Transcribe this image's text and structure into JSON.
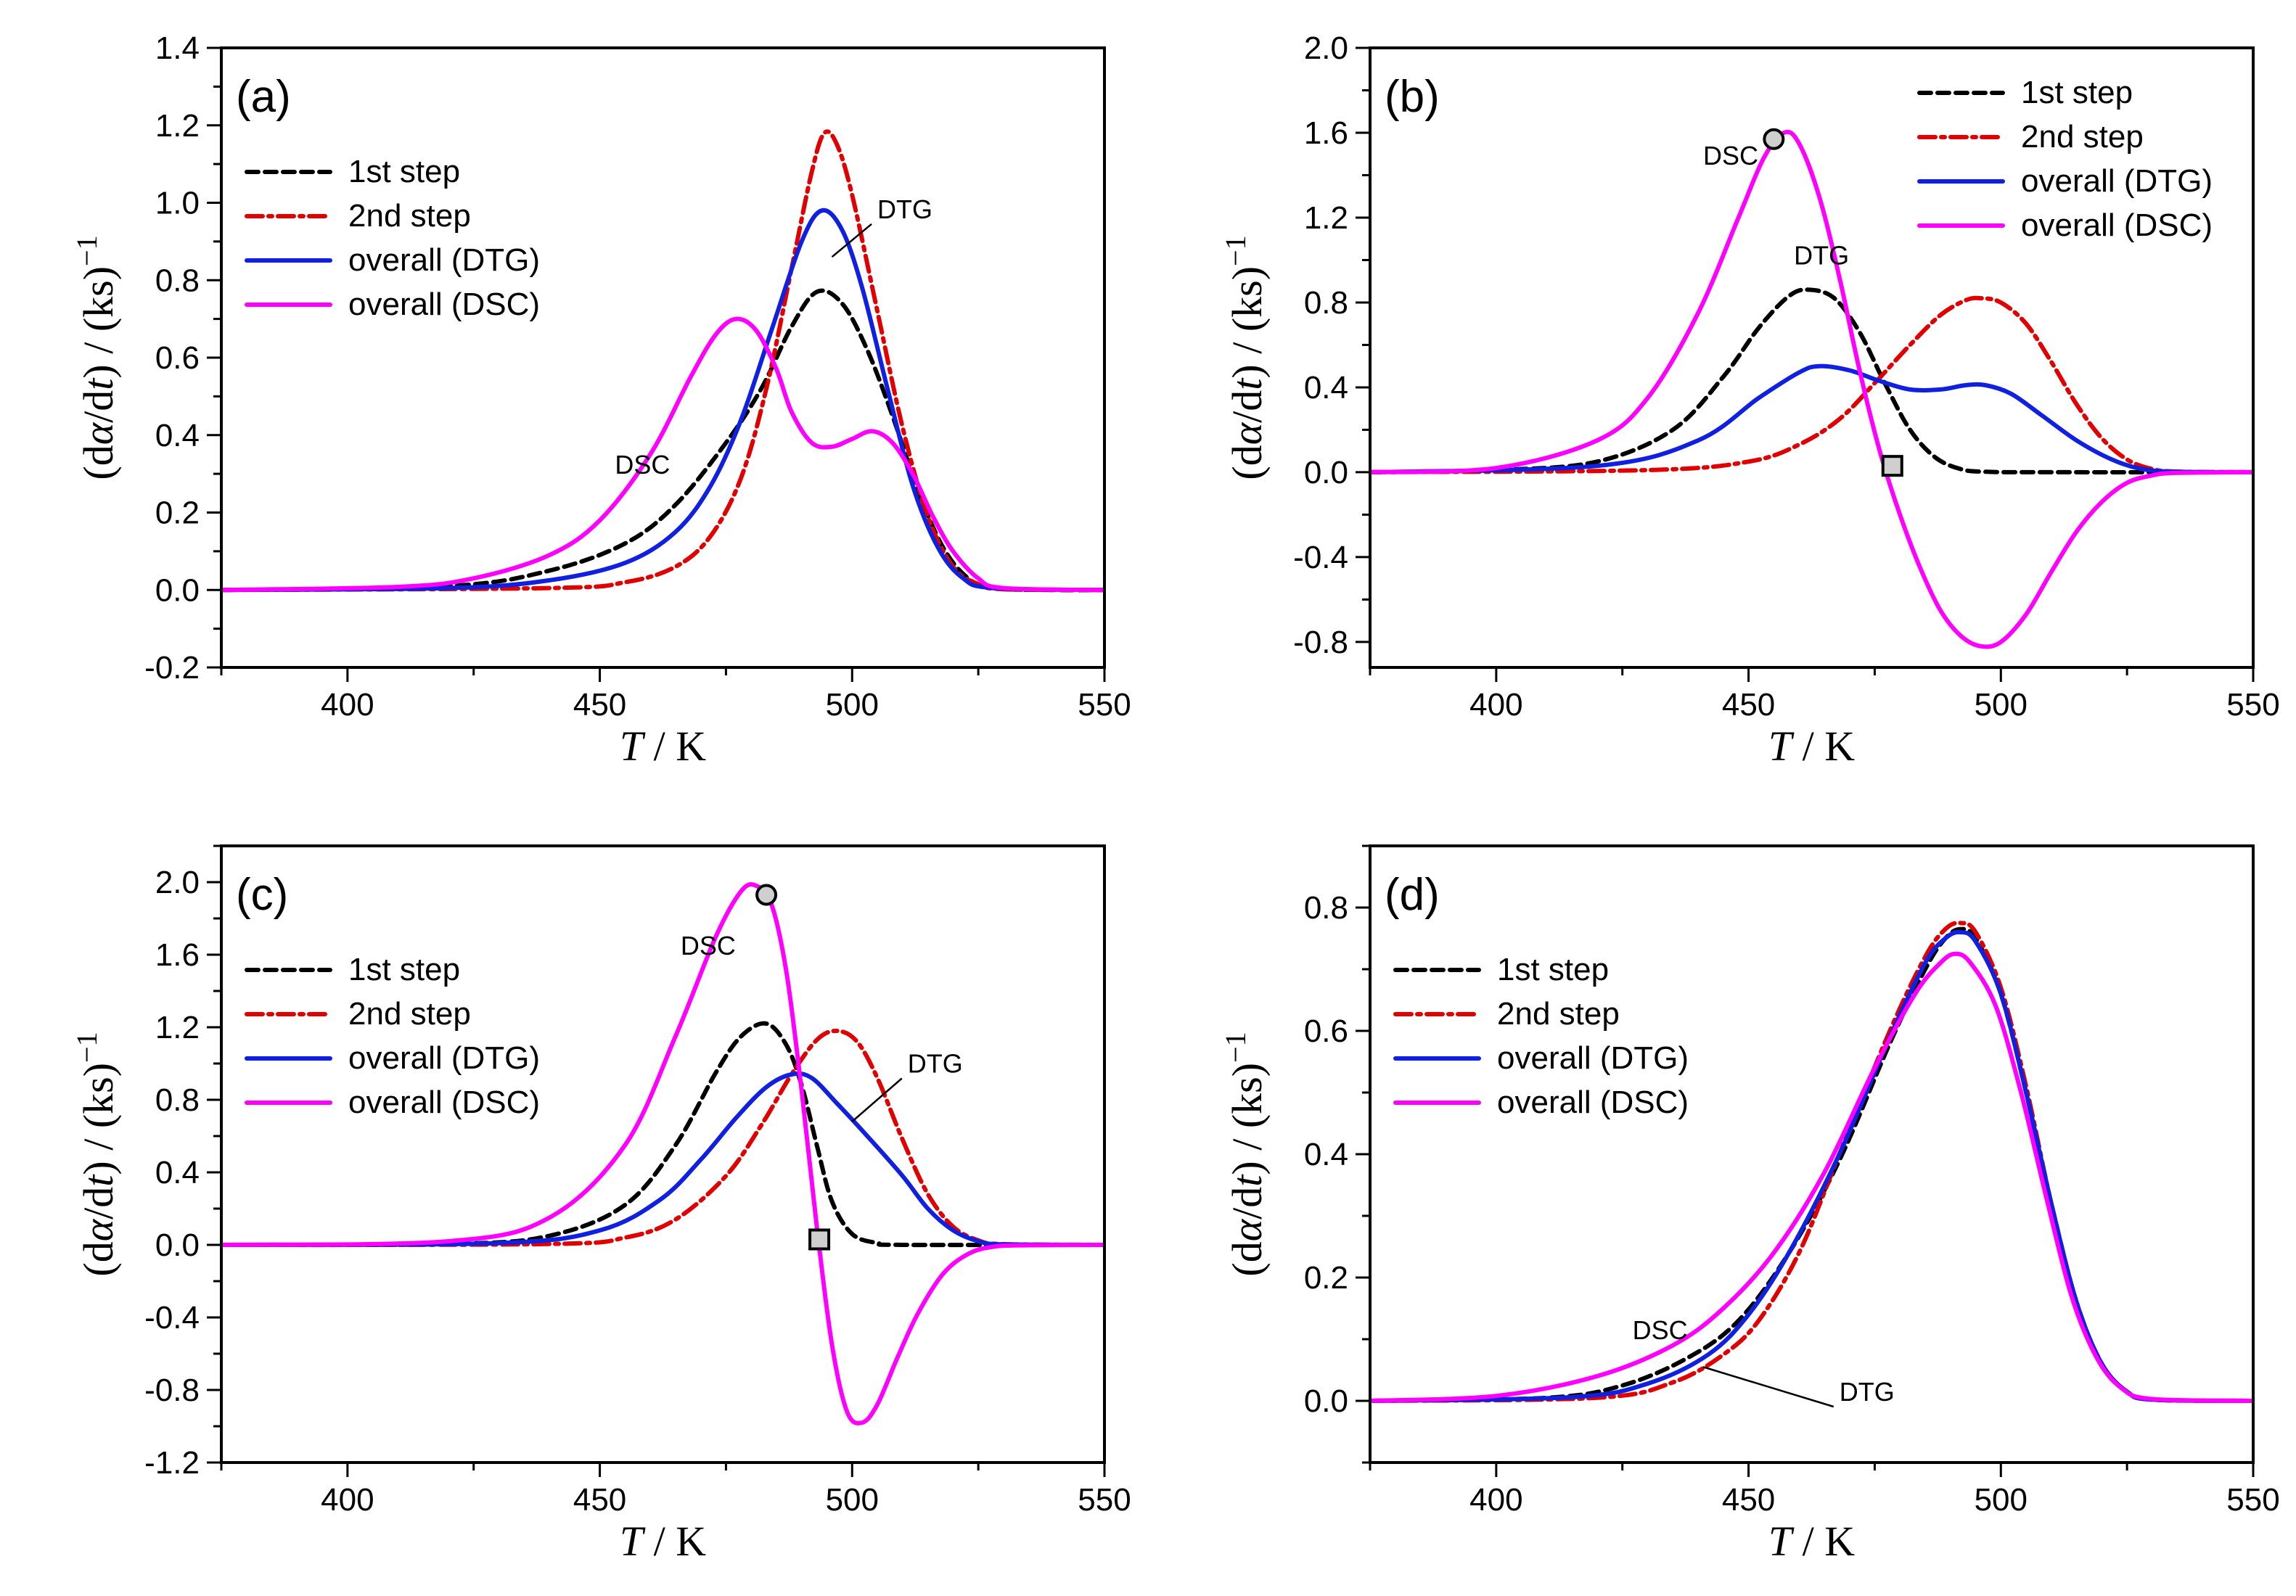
{
  "chart_data": [
    {
      "panel": "(a)",
      "type": "line",
      "xlabel": "T / K",
      "ylabel": "(dα/dt) / (ks)−1",
      "xlim": [
        375,
        550
      ],
      "ylim": [
        -0.2,
        1.4
      ],
      "xticks": [
        400,
        450,
        500,
        550
      ],
      "yticks": [
        -0.2,
        0.0,
        0.2,
        0.4,
        0.6,
        0.8,
        1.0,
        1.2,
        1.4
      ],
      "ytick_labels": [
        "-0.2",
        "0.0",
        "0.2",
        "0.4",
        "0.6",
        "0.8",
        "1.0",
        "1.2",
        "1.4"
      ],
      "legend_position": "upper-left",
      "series": [
        {
          "name": "1st step",
          "color": "#000000",
          "style": "dash",
          "x": [
            375,
            420,
            440,
            455,
            465,
            475,
            482,
            488,
            493,
            498,
            503,
            508,
            513,
            518,
            523,
            528,
            540,
            550
          ],
          "y": [
            0,
            0.01,
            0.05,
            0.12,
            0.22,
            0.38,
            0.52,
            0.68,
            0.77,
            0.74,
            0.62,
            0.45,
            0.26,
            0.11,
            0.03,
            0.005,
            0,
            0
          ]
        },
        {
          "name": "2nd step",
          "color": "#e00000",
          "style": "dashdot",
          "x": [
            375,
            440,
            455,
            465,
            472,
            478,
            483,
            488,
            492,
            494.5,
            497,
            500,
            505,
            510,
            515,
            520,
            525,
            530,
            550
          ],
          "y": [
            0,
            0.005,
            0.02,
            0.06,
            0.14,
            0.29,
            0.52,
            0.83,
            1.08,
            1.18,
            1.15,
            1.02,
            0.72,
            0.42,
            0.19,
            0.06,
            0.015,
            0.002,
            0
          ]
        },
        {
          "name": "overall (DTG)",
          "color": "#1020e0",
          "style": "solid",
          "x": [
            375,
            420,
            440,
            455,
            465,
            472,
            478,
            484,
            490,
            494,
            498,
            502,
            507,
            512,
            517,
            522,
            528,
            550
          ],
          "y": [
            0,
            0.005,
            0.025,
            0.07,
            0.15,
            0.27,
            0.44,
            0.67,
            0.9,
            0.98,
            0.93,
            0.78,
            0.52,
            0.27,
            0.11,
            0.03,
            0.005,
            0
          ]
        },
        {
          "name": "overall (DSC)",
          "color": "#ff00ff",
          "style": "solid",
          "x": [
            375,
            410,
            425,
            440,
            450,
            460,
            468,
            473,
            477,
            481,
            485,
            488,
            492,
            496,
            500,
            504,
            508,
            512,
            516,
            520,
            525,
            530,
            550
          ],
          "y": [
            0,
            0.008,
            0.03,
            0.09,
            0.18,
            0.35,
            0.55,
            0.66,
            0.7,
            0.67,
            0.57,
            0.46,
            0.38,
            0.37,
            0.39,
            0.41,
            0.38,
            0.3,
            0.19,
            0.1,
            0.03,
            0.005,
            0
          ]
        }
      ],
      "annotations": [
        {
          "label": "DTG",
          "x": 505,
          "y": 0.96,
          "leader_to": [
            496,
            0.86
          ]
        },
        {
          "label": "DSC",
          "x": 453,
          "y": 0.3
        }
      ],
      "markers": []
    },
    {
      "panel": "(b)",
      "type": "line",
      "xlabel": "T / K",
      "ylabel": "(dα/dt) / (ks)−1",
      "xlim": [
        375,
        550
      ],
      "ylim": [
        -0.92,
        2.0
      ],
      "xticks": [
        400,
        450,
        500,
        550
      ],
      "yticks": [
        -0.8,
        -0.4,
        0.0,
        0.4,
        0.8,
        1.2,
        1.6,
        2.0
      ],
      "ytick_labels": [
        "-0.8",
        "-0.4",
        "0.0",
        "0.4",
        "0.8",
        "1.2",
        "1.6",
        "2.0"
      ],
      "legend_position": "upper-right",
      "series": [
        {
          "name": "1st step",
          "color": "#000000",
          "style": "dash",
          "x": [
            375,
            400,
            420,
            435,
            445,
            452,
            458,
            462,
            467,
            472,
            477,
            482,
            487,
            492,
            497,
            510,
            550
          ],
          "y": [
            0,
            0.01,
            0.05,
            0.2,
            0.45,
            0.68,
            0.83,
            0.86,
            0.82,
            0.66,
            0.42,
            0.2,
            0.07,
            0.015,
            0.002,
            0,
            0
          ]
        },
        {
          "name": "2nd step",
          "color": "#e00000",
          "style": "dashdot",
          "x": [
            375,
            430,
            450,
            460,
            468,
            475,
            482,
            488,
            493,
            496,
            500,
            505,
            510,
            515,
            520,
            525,
            530,
            535,
            550
          ],
          "y": [
            0,
            0.01,
            0.05,
            0.13,
            0.25,
            0.42,
            0.6,
            0.74,
            0.81,
            0.82,
            0.8,
            0.7,
            0.52,
            0.32,
            0.16,
            0.06,
            0.015,
            0.003,
            0
          ]
        },
        {
          "name": "overall (DTG)",
          "color": "#1020e0",
          "style": "solid",
          "x": [
            375,
            420,
            440,
            452,
            460,
            464,
            470,
            476,
            482,
            488,
            493,
            497,
            502,
            508,
            515,
            522,
            528,
            535,
            550
          ],
          "y": [
            0,
            0.03,
            0.15,
            0.35,
            0.47,
            0.5,
            0.48,
            0.43,
            0.39,
            0.39,
            0.41,
            0.41,
            0.37,
            0.27,
            0.15,
            0.06,
            0.015,
            0.002,
            0
          ]
        },
        {
          "name": "overall (DSC)",
          "color": "#ff00ff",
          "style": "solid",
          "x": [
            375,
            400,
            420,
            430,
            440,
            448,
            453,
            457,
            460,
            464,
            468,
            472,
            476,
            480,
            484,
            488,
            492,
            496,
            500,
            505,
            510,
            515,
            520,
            525,
            530,
            535,
            550
          ],
          "y": [
            0,
            0.02,
            0.15,
            0.35,
            0.75,
            1.2,
            1.48,
            1.6,
            1.55,
            1.3,
            0.92,
            0.48,
            0.1,
            -0.2,
            -0.45,
            -0.65,
            -0.77,
            -0.82,
            -0.8,
            -0.67,
            -0.47,
            -0.28,
            -0.14,
            -0.05,
            -0.015,
            -0.003,
            0
          ]
        }
      ],
      "annotations": [
        {
          "label": "DSC",
          "x": 441,
          "y": 1.45
        },
        {
          "label": "DTG",
          "x": 459,
          "y": 0.98
        }
      ],
      "markers": [
        {
          "shape": "circle",
          "x": 455,
          "y": 1.57
        },
        {
          "shape": "square",
          "x": 478.5,
          "y": 0.03
        }
      ]
    },
    {
      "panel": "(c)",
      "type": "line",
      "xlabel": "T / K",
      "ylabel": "(dα/dt) / (ks)−1",
      "xlim": [
        375,
        550
      ],
      "ylim": [
        -1.2,
        2.2
      ],
      "xticks": [
        400,
        450,
        500,
        550
      ],
      "yticks": [
        -1.2,
        -0.8,
        -0.4,
        0.0,
        0.4,
        0.8,
        1.2,
        1.6,
        2.0
      ],
      "ytick_labels": [
        "-1.2",
        "-0.8",
        "-0.4",
        "0.0",
        "0.4",
        "0.8",
        "1.2",
        "1.6",
        "2.0"
      ],
      "legend_position": "upper-left",
      "series": [
        {
          "name": "1st step",
          "color": "#000000",
          "style": "dash",
          "x": [
            375,
            420,
            440,
            455,
            465,
            473,
            478,
            483,
            487,
            490,
            493,
            496,
            500,
            505,
            510,
            550
          ],
          "y": [
            0,
            0.005,
            0.05,
            0.22,
            0.55,
            0.95,
            1.15,
            1.22,
            1.1,
            0.88,
            0.55,
            0.24,
            0.06,
            0.01,
            0,
            0
          ]
        },
        {
          "name": "2nd step",
          "color": "#e00000",
          "style": "dashdot",
          "x": [
            375,
            440,
            455,
            465,
            475,
            482,
            488,
            493,
            497,
            501,
            505,
            510,
            515,
            520,
            525,
            530,
            550
          ],
          "y": [
            0,
            0.005,
            0.04,
            0.14,
            0.38,
            0.66,
            0.94,
            1.13,
            1.18,
            1.12,
            0.92,
            0.58,
            0.28,
            0.1,
            0.025,
            0.004,
            0
          ]
        },
        {
          "name": "overall (DTG)",
          "color": "#1020e0",
          "style": "solid",
          "x": [
            375,
            430,
            450,
            462,
            470,
            477,
            483,
            488,
            492,
            497,
            503,
            510,
            515,
            520,
            525,
            530,
            550
          ],
          "y": [
            0,
            0.01,
            0.08,
            0.25,
            0.47,
            0.7,
            0.87,
            0.94,
            0.92,
            0.78,
            0.6,
            0.38,
            0.2,
            0.08,
            0.02,
            0.003,
            0
          ]
        },
        {
          "name": "overall (DSC)",
          "color": "#ff00ff",
          "style": "solid",
          "x": [
            375,
            420,
            440,
            455,
            465,
            473,
            478,
            481,
            484,
            487,
            490,
            493,
            496,
            499,
            502,
            505,
            509,
            513,
            518,
            523,
            528,
            535,
            550
          ],
          "y": [
            0,
            0.02,
            0.15,
            0.55,
            1.15,
            1.7,
            1.95,
            1.98,
            1.88,
            1.5,
            0.85,
            0.1,
            -0.55,
            -0.92,
            -0.98,
            -0.88,
            -0.62,
            -0.38,
            -0.16,
            -0.05,
            -0.01,
            -0.002,
            0
          ]
        }
      ],
      "annotations": [
        {
          "label": "DSC",
          "x": 466,
          "y": 1.6
        },
        {
          "label": "DTG",
          "x": 511,
          "y": 0.95,
          "leader_to": [
            500,
            0.68
          ]
        }
      ],
      "markers": [
        {
          "shape": "circle",
          "x": 483,
          "y": 1.93
        },
        {
          "shape": "square",
          "x": 493.5,
          "y": 0.03
        }
      ]
    },
    {
      "panel": "(d)",
      "type": "line",
      "xlabel": "T / K",
      "ylabel": "(dα/dt) / (ks)−1",
      "xlim": [
        375,
        550
      ],
      "ylim": [
        -0.1,
        0.9
      ],
      "xticks": [
        400,
        450,
        500,
        550
      ],
      "yticks": [
        0.0,
        0.2,
        0.4,
        0.6,
        0.8
      ],
      "ytick_labels": [
        "0.0",
        "0.2",
        "0.4",
        "0.6",
        "0.8"
      ],
      "legend_position": "upper-left",
      "series": [
        {
          "name": "1st step",
          "color": "#000000",
          "style": "dash",
          "x": [
            375,
            410,
            425,
            438,
            448,
            458,
            468,
            478,
            485,
            489,
            492,
            495,
            500,
            505,
            510,
            515,
            520,
            525,
            530,
            550
          ],
          "y": [
            0,
            0.005,
            0.025,
            0.07,
            0.13,
            0.24,
            0.39,
            0.58,
            0.7,
            0.75,
            0.765,
            0.75,
            0.66,
            0.5,
            0.32,
            0.16,
            0.06,
            0.015,
            0.002,
            0
          ]
        },
        {
          "name": "2nd step",
          "color": "#e00000",
          "style": "dashdot",
          "x": [
            375,
            420,
            435,
            445,
            452,
            460,
            468,
            478,
            485,
            489,
            492,
            495,
            500,
            505,
            510,
            515,
            520,
            525,
            530,
            550
          ],
          "y": [
            0,
            0.005,
            0.03,
            0.075,
            0.13,
            0.24,
            0.4,
            0.6,
            0.72,
            0.765,
            0.775,
            0.76,
            0.67,
            0.51,
            0.32,
            0.16,
            0.06,
            0.015,
            0.002,
            0
          ]
        },
        {
          "name": "overall (DTG)",
          "color": "#1020e0",
          "style": "solid",
          "x": [
            375,
            415,
            430,
            442,
            450,
            458,
            468,
            478,
            485,
            489,
            492,
            495,
            500,
            505,
            510,
            515,
            520,
            525,
            530,
            550
          ],
          "y": [
            0,
            0.006,
            0.028,
            0.075,
            0.14,
            0.24,
            0.4,
            0.59,
            0.71,
            0.75,
            0.76,
            0.745,
            0.66,
            0.5,
            0.32,
            0.16,
            0.06,
            0.015,
            0.002,
            0
          ]
        },
        {
          "name": "overall (DSC)",
          "color": "#ff00ff",
          "style": "solid",
          "x": [
            375,
            400,
            420,
            435,
            445,
            455,
            465,
            475,
            483,
            488,
            491,
            494,
            499,
            504,
            509,
            514,
            519,
            524,
            530,
            550
          ],
          "y": [
            0,
            0.008,
            0.04,
            0.09,
            0.15,
            0.24,
            0.37,
            0.54,
            0.66,
            0.71,
            0.725,
            0.71,
            0.64,
            0.5,
            0.33,
            0.17,
            0.07,
            0.02,
            0.003,
            0
          ]
        }
      ],
      "annotations": [
        {
          "label": "DSC",
          "x": 427,
          "y": 0.1
        },
        {
          "label": "DTG",
          "x": 468,
          "y": 0.0,
          "leader_to": [
            441,
            0.055
          ]
        }
      ],
      "markers": []
    }
  ]
}
